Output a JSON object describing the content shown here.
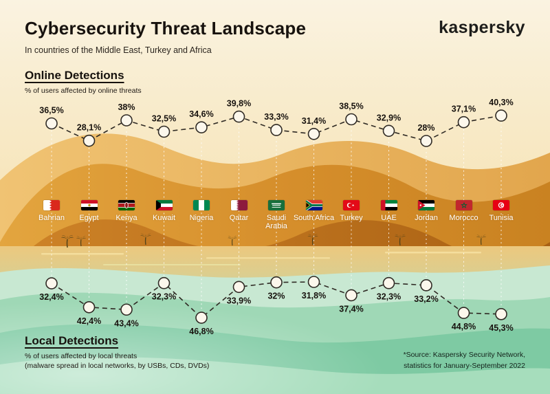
{
  "header": {
    "title": "Cybersecurity Threat Landscape",
    "subtitle": "In countries of the Middle East, Turkey and Africa",
    "brand": "kaspersky"
  },
  "online": {
    "heading": "Online Detections",
    "description": "% of users affected by online threats"
  },
  "local": {
    "heading": "Local Detections",
    "description_line1": "% of users affected by local threats",
    "description_line2": "(malware spread in local networks, by USBs, CDs, DVDs)"
  },
  "source_note": {
    "line1": "*Source: Kaspersky Security Network,",
    "line2": "statistics for January-September 2022"
  },
  "countries": [
    {
      "name": "Bahrian",
      "flag": "bahrain",
      "online": 36.5,
      "online_label": "36,5%",
      "local": 32.4,
      "local_label": "32,4%"
    },
    {
      "name": "Egypt",
      "flag": "egypt",
      "online": 28.1,
      "online_label": "28,1%",
      "local": 42.4,
      "local_label": "42,4%"
    },
    {
      "name": "Kenya",
      "flag": "kenya",
      "online": 38.0,
      "online_label": "38%",
      "local": 43.4,
      "local_label": "43,4%"
    },
    {
      "name": "Kuwait",
      "flag": "kuwait",
      "online": 32.5,
      "online_label": "32,5%",
      "local": 32.3,
      "local_label": "32,3%"
    },
    {
      "name": "Nigeria",
      "flag": "nigeria",
      "online": 34.6,
      "online_label": "34,6%",
      "local": 46.8,
      "local_label": "46,8%"
    },
    {
      "name": "Qatar",
      "flag": "qatar",
      "online": 39.8,
      "online_label": "39,8%",
      "local": 33.9,
      "local_label": "33,9%"
    },
    {
      "name": "Saudi Arabia",
      "flag": "saudi",
      "online": 33.3,
      "online_label": "33,3%",
      "local": 32.0,
      "local_label": "32%"
    },
    {
      "name": "South Africa",
      "flag": "southafrica",
      "online": 31.4,
      "online_label": "31,4%",
      "local": 31.8,
      "local_label": "31,8%"
    },
    {
      "name": "Turkey",
      "flag": "turkey",
      "online": 38.5,
      "online_label": "38,5%",
      "local": 37.4,
      "local_label": "37,4%"
    },
    {
      "name": "UAE",
      "flag": "uae",
      "online": 32.9,
      "online_label": "32,9%",
      "local": 32.3,
      "local_label": "32,3%"
    },
    {
      "name": "Jordan",
      "flag": "jordan",
      "online": 28.0,
      "online_label": "28%",
      "local": 33.2,
      "local_label": "33,2%"
    },
    {
      "name": "Morocco",
      "flag": "morocco",
      "online": 37.1,
      "online_label": "37,1%",
      "local": 44.8,
      "local_label": "44,8%"
    },
    {
      "name": "Tunisia",
      "flag": "tunisia",
      "online": 40.3,
      "online_label": "40,3%",
      "local": 45.3,
      "local_label": "45,3%"
    }
  ],
  "chart_data": {
    "type": "line",
    "title": "Cybersecurity Threat Landscape",
    "subtitle": "In countries of the Middle East, Turkey and Africa",
    "unit": "% of users affected",
    "grid": false,
    "legend_position": "inline-headings",
    "categories": [
      "Bahrian",
      "Egypt",
      "Kenya",
      "Kuwait",
      "Nigeria",
      "Qatar",
      "Saudi Arabia",
      "South Africa",
      "Turkey",
      "UAE",
      "Jordan",
      "Morocco",
      "Tunisia"
    ],
    "series": [
      {
        "name": "Online Detections (% of users affected by online threats)",
        "values": [
          36.5,
          28.1,
          38,
          32.5,
          34.6,
          39.8,
          33.3,
          31.4,
          38.5,
          32.9,
          28,
          37.1,
          40.3
        ]
      },
      {
        "name": "Local Detections (% of users affected by local threats)",
        "values": [
          32.4,
          42.4,
          43.4,
          32.3,
          46.8,
          33.9,
          32,
          31.8,
          37.4,
          32.3,
          33.2,
          44.8,
          45.3
        ]
      }
    ]
  },
  "colors": {
    "marker_fill": "#fcf7ec",
    "marker_stroke": "#2f2a24",
    "trend_dash": "#2f2a24",
    "guide_dash": "#ffffff",
    "country_label": "#ffffff",
    "heading_text": "#17120e"
  }
}
